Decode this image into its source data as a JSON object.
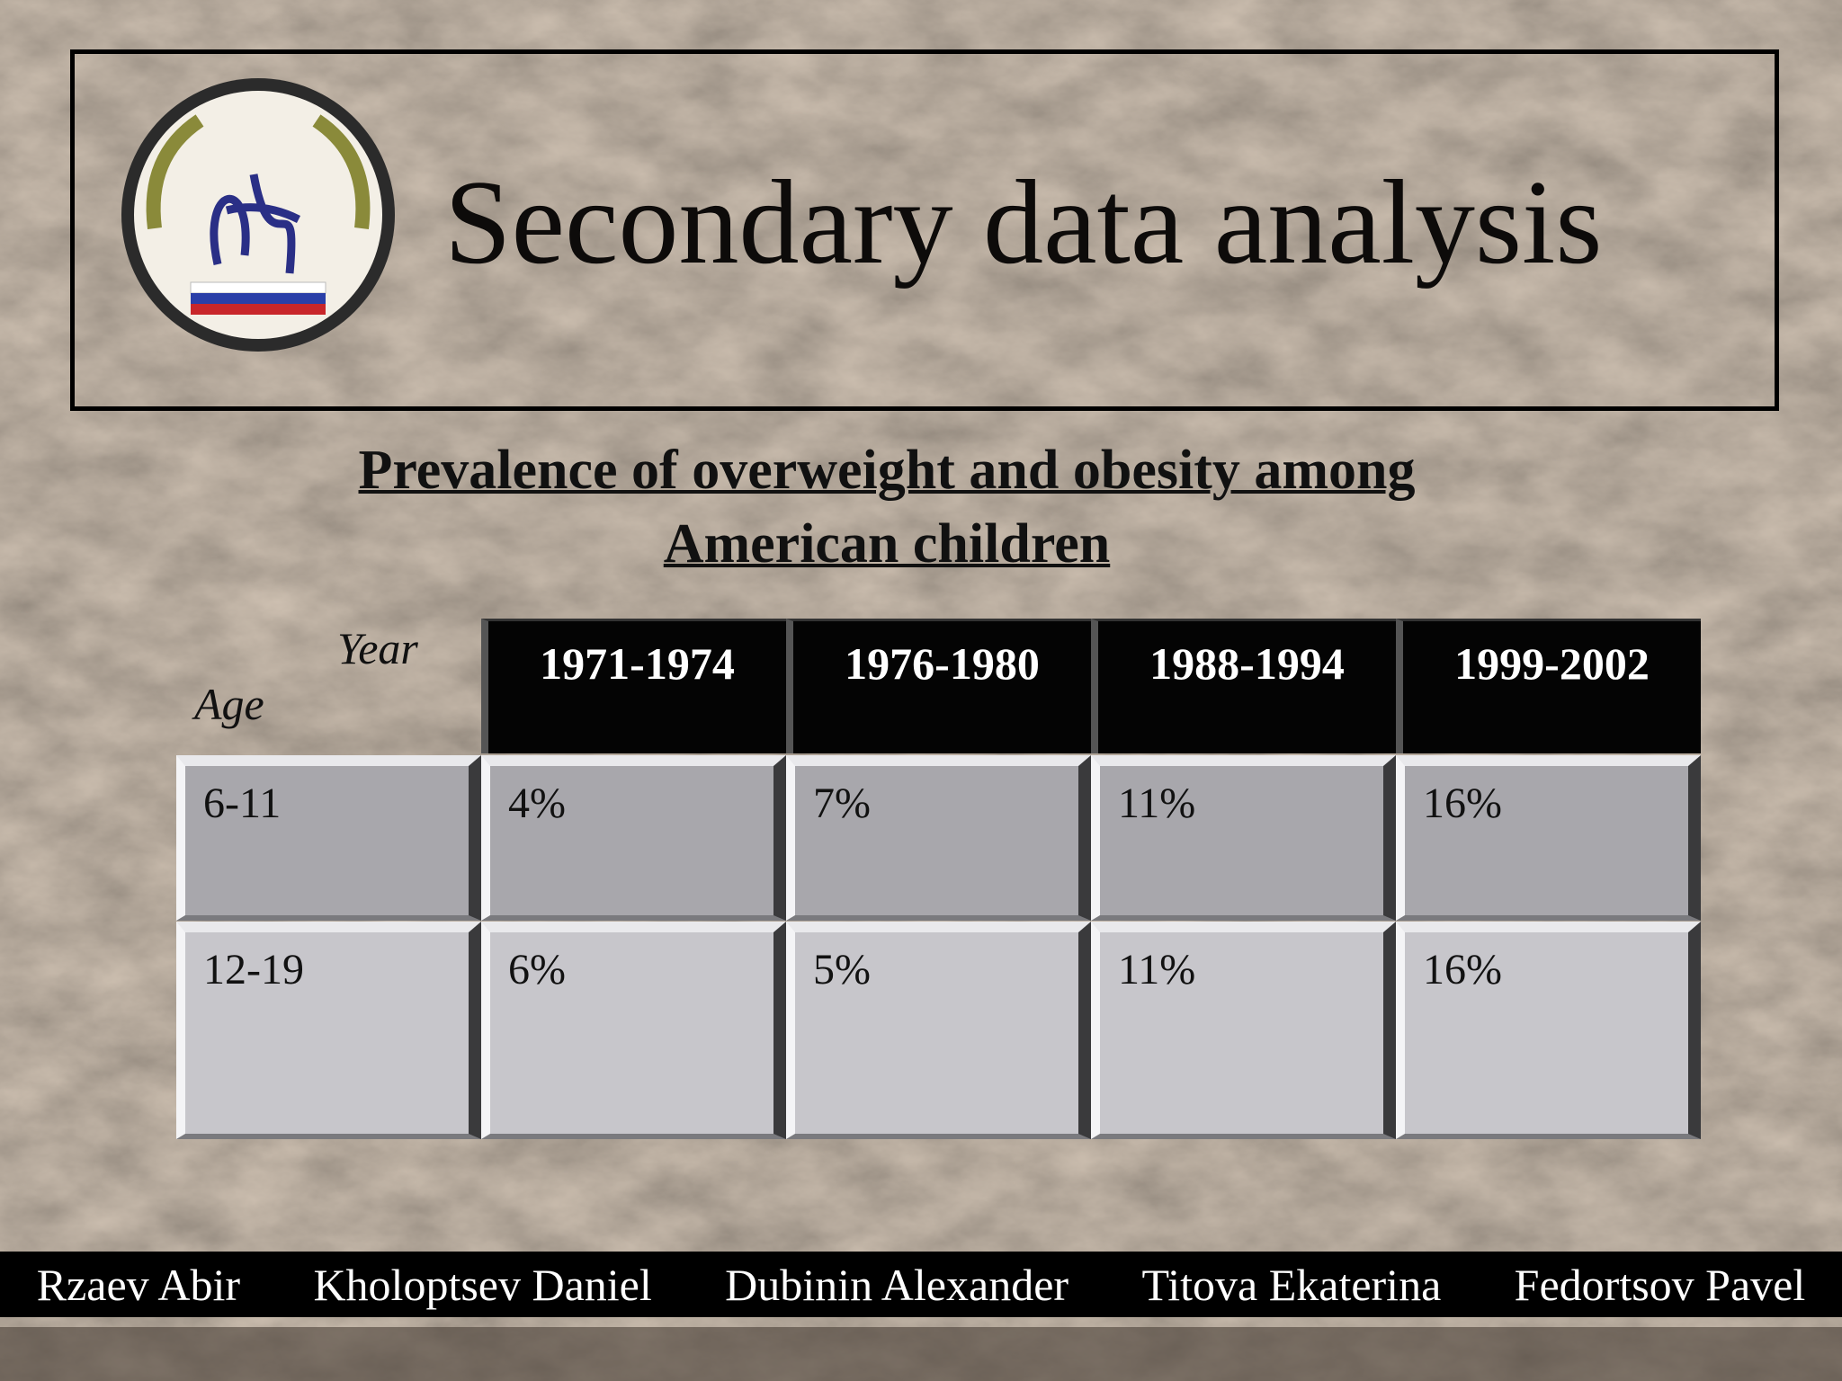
{
  "header": {
    "title": "Secondary data analysis"
  },
  "table": {
    "caption_lines": [
      "Prevalence of overweight and obesity among",
      "American children"
    ],
    "corner_column_label": "Year",
    "corner_row_label": "Age",
    "columns": [
      "1971-1974",
      "1976-1980",
      "1988-1994",
      "1999-2002"
    ],
    "rows": [
      [
        "6-11",
        "4%",
        "7%",
        "11%",
        "16%"
      ],
      [
        "12-19",
        "6%",
        "5%",
        "11%",
        "16%"
      ]
    ]
  },
  "footer": {
    "names": [
      "Rzaev Abir",
      "Kholoptsev Daniel",
      "Dubinin Alexander",
      "Titova Ekaterina",
      "Fedortsov Pavel"
    ]
  }
}
